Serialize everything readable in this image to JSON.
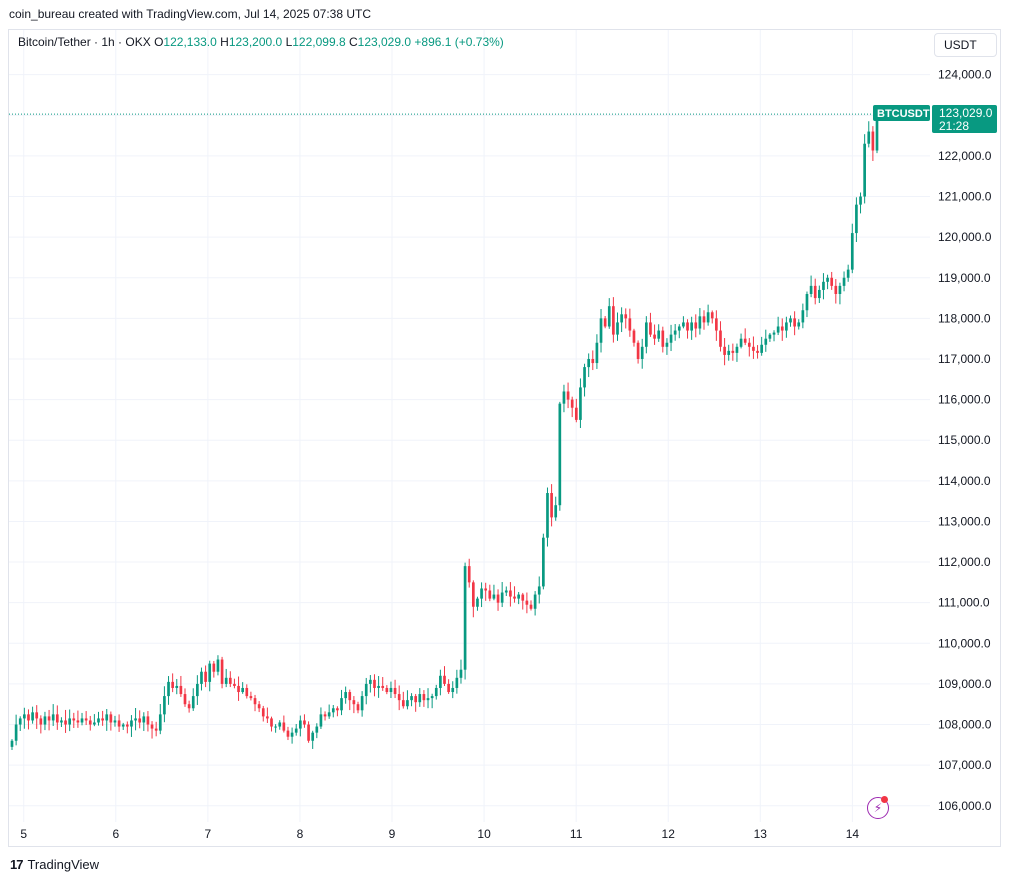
{
  "header": {
    "created_text": "coin_bureau created with TradingView.com, Jul 14, 2025 07:38 UTC"
  },
  "legend": {
    "symbol": "Bitcoin/Tether · 1h · OKX",
    "o_label": "O",
    "o_value": "122,133.0",
    "h_label": "H",
    "h_value": "123,200.0",
    "l_label": "L",
    "l_value": "122,099.8",
    "c_label": "C",
    "c_value": "123,029.0",
    "change": "+896.1 (+0.73%)"
  },
  "currency_button": "USDT",
  "price_tag": {
    "ticker": "BTCUSDT",
    "price": "123,029.0",
    "countdown": "21:28"
  },
  "footer": {
    "brand": "TradingView"
  },
  "colors": {
    "up": "#089981",
    "down": "#f23645",
    "grid": "#f0f3fa",
    "accent": "#9c27b0"
  },
  "chart_data": {
    "type": "candlestick",
    "symbol": "BTCUSDT",
    "timeframe": "1h",
    "x_ticks": [
      {
        "label": "5",
        "day": 5
      },
      {
        "label": "6",
        "day": 6
      },
      {
        "label": "7",
        "day": 7
      },
      {
        "label": "8",
        "day": 8
      },
      {
        "label": "9",
        "day": 9
      },
      {
        "label": "10",
        "day": 10
      },
      {
        "label": "11",
        "day": 11
      },
      {
        "label": "12",
        "day": 12
      },
      {
        "label": "13",
        "day": 13
      },
      {
        "label": "14",
        "day": 14
      }
    ],
    "y_ticks": [
      106000,
      107000,
      108000,
      109000,
      110000,
      111000,
      112000,
      113000,
      114000,
      115000,
      116000,
      117000,
      118000,
      119000,
      120000,
      121000,
      122000,
      123000,
      124000
    ],
    "y_tick_labels": [
      "106,000.0",
      "107,000.0",
      "108,000.0",
      "109,000.0",
      "110,000.0",
      "111,000.0",
      "112,000.0",
      "113,000.0",
      "114,000.0",
      "115,000.0",
      "116,000.0",
      "117,000.0",
      "118,000.0",
      "119,000.0",
      "120,000.0",
      "121,000.0",
      "122,000.0",
      "123,000.0",
      "124,000.0"
    ],
    "ylim": [
      105600,
      125100
    ],
    "last_price": 123029.0,
    "closes": [
      107600,
      108000,
      108150,
      108250,
      108100,
      108300,
      108150,
      108000,
      108200,
      108100,
      108250,
      108050,
      108100,
      108000,
      108150,
      108100,
      108050,
      108150,
      108100,
      108000,
      108050,
      108150,
      108100,
      108250,
      108050,
      108100,
      107950,
      108000,
      107950,
      108100,
      108150,
      108050,
      108200,
      108000,
      107900,
      107850,
      108250,
      108700,
      109050,
      108900,
      108950,
      108750,
      108500,
      108400,
      108700,
      109000,
      109300,
      109050,
      109500,
      109300,
      109600,
      109000,
      109150,
      109000,
      108950,
      108800,
      108900,
      108700,
      108650,
      108500,
      108400,
      108200,
      108150,
      107950,
      107950,
      108050,
      107850,
      107700,
      107800,
      107900,
      108100,
      108000,
      107600,
      107800,
      107950,
      108250,
      108200,
      108300,
      108400,
      108350,
      108650,
      108800,
      108600,
      108500,
      108350,
      108700,
      109000,
      109100,
      108900,
      108950,
      108900,
      108800,
      108900,
      108750,
      108600,
      108450,
      108600,
      108700,
      108550,
      108750,
      108600,
      108650,
      108700,
      108900,
      109200,
      109000,
      108800,
      108900,
      109150,
      109350,
      111900,
      111500,
      110900,
      111100,
      111350,
      111300,
      111100,
      111200,
      111000,
      111250,
      111300,
      111150,
      111100,
      111200,
      111050,
      110950,
      110850,
      111200,
      111400,
      112600,
      113700,
      113100,
      113400,
      115900,
      116200,
      116000,
      115800,
      115500,
      116300,
      116800,
      117000,
      116900,
      117400,
      118000,
      117800,
      118300,
      117600,
      117900,
      118100,
      118000,
      117700,
      117400,
      117000,
      117300,
      117900,
      117600,
      117500,
      117700,
      117300,
      117400,
      117600,
      117700,
      117800,
      117900,
      117700,
      117900,
      117750,
      118050,
      117900,
      118150,
      118000,
      117700,
      117300,
      117100,
      117200,
      117150,
      117300,
      117500,
      117400,
      117300,
      117200,
      117150,
      117350,
      117500,
      117600,
      117650,
      117800,
      117700,
      117900,
      118000,
      117800,
      117900,
      118200,
      118600,
      118800,
      118500,
      118700,
      118900,
      119000,
      118800,
      118600,
      118800,
      119000,
      119200,
      120100,
      120800,
      121000,
      122300,
      122600,
      122133,
      123029
    ],
    "series": [
      {
        "name": "BTCUSDT",
        "description": "hourly OHLC candles"
      }
    ]
  }
}
